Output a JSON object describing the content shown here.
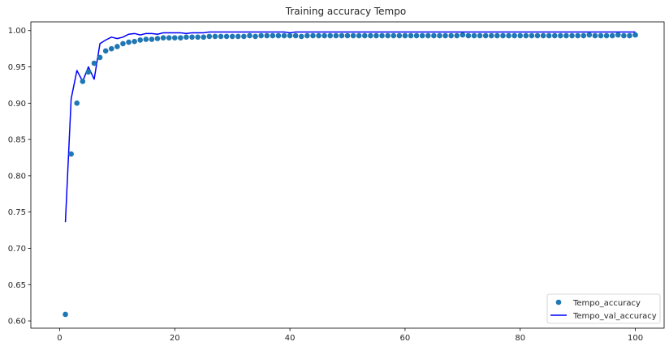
{
  "chart_data": {
    "type": "scatter",
    "title": "Training accuracy Tempo",
    "xlabel": "",
    "ylabel": "",
    "xlim": [
      -5,
      105
    ],
    "ylim": [
      0.59,
      1.012
    ],
    "xticks": [
      0,
      20,
      40,
      60,
      80,
      100
    ],
    "xtick_labels": [
      "0",
      "20",
      "40",
      "60",
      "80",
      "100"
    ],
    "yticks": [
      0.6,
      0.65,
      0.7,
      0.75,
      0.8,
      0.85,
      0.9,
      0.95,
      1.0
    ],
    "ytick_labels": [
      "0.60",
      "0.65",
      "0.70",
      "0.75",
      "0.80",
      "0.85",
      "0.90",
      "0.95",
      "1.00"
    ],
    "grid": false,
    "legend_position": "lower-right",
    "series": [
      {
        "name": "Tempo_accuracy",
        "kind": "scatter",
        "color": "#1f77b4",
        "x": [
          1,
          2,
          3,
          4,
          5,
          6,
          7,
          8,
          9,
          10,
          11,
          12,
          13,
          14,
          15,
          16,
          17,
          18,
          19,
          20,
          21,
          22,
          23,
          24,
          25,
          26,
          27,
          28,
          29,
          30,
          31,
          32,
          33,
          34,
          35,
          36,
          37,
          38,
          39,
          40,
          41,
          42,
          43,
          44,
          45,
          46,
          47,
          48,
          49,
          50,
          51,
          52,
          53,
          54,
          55,
          56,
          57,
          58,
          59,
          60,
          61,
          62,
          63,
          64,
          65,
          66,
          67,
          68,
          69,
          70,
          71,
          72,
          73,
          74,
          75,
          76,
          77,
          78,
          79,
          80,
          81,
          82,
          83,
          84,
          85,
          86,
          87,
          88,
          89,
          90,
          91,
          92,
          93,
          94,
          95,
          96,
          97,
          98,
          99,
          100
        ],
        "y": [
          0.609,
          0.83,
          0.9,
          0.93,
          0.943,
          0.955,
          0.963,
          0.972,
          0.975,
          0.978,
          0.982,
          0.984,
          0.985,
          0.987,
          0.988,
          0.988,
          0.989,
          0.99,
          0.99,
          0.99,
          0.99,
          0.991,
          0.991,
          0.991,
          0.991,
          0.992,
          0.992,
          0.992,
          0.992,
          0.992,
          0.992,
          0.992,
          0.993,
          0.992,
          0.993,
          0.993,
          0.993,
          0.993,
          0.993,
          0.993,
          0.993,
          0.992,
          0.993,
          0.993,
          0.993,
          0.993,
          0.993,
          0.993,
          0.993,
          0.993,
          0.993,
          0.993,
          0.993,
          0.993,
          0.993,
          0.993,
          0.993,
          0.993,
          0.993,
          0.993,
          0.993,
          0.993,
          0.993,
          0.993,
          0.993,
          0.993,
          0.993,
          0.993,
          0.993,
          0.994,
          0.993,
          0.993,
          0.993,
          0.993,
          0.993,
          0.993,
          0.993,
          0.993,
          0.993,
          0.993,
          0.993,
          0.993,
          0.993,
          0.993,
          0.993,
          0.993,
          0.993,
          0.993,
          0.993,
          0.993,
          0.993,
          0.994,
          0.993,
          0.993,
          0.993,
          0.993,
          0.994,
          0.993,
          0.993,
          0.994
        ]
      },
      {
        "name": "Tempo_val_accuracy",
        "kind": "line",
        "color": "#0000ff",
        "x": [
          1,
          2,
          3,
          4,
          5,
          6,
          7,
          8,
          9,
          10,
          11,
          12,
          13,
          14,
          15,
          16,
          17,
          18,
          19,
          20,
          21,
          22,
          23,
          24,
          25,
          26,
          27,
          28,
          29,
          30,
          31,
          32,
          33,
          34,
          35,
          36,
          37,
          38,
          39,
          40,
          41,
          42,
          43,
          44,
          45,
          46,
          47,
          48,
          49,
          50,
          51,
          52,
          53,
          54,
          55,
          56,
          57,
          58,
          59,
          60,
          61,
          62,
          63,
          64,
          65,
          66,
          67,
          68,
          69,
          70,
          71,
          72,
          73,
          74,
          75,
          76,
          77,
          78,
          79,
          80,
          81,
          82,
          83,
          84,
          85,
          86,
          87,
          88,
          89,
          90,
          91,
          92,
          93,
          94,
          95,
          96,
          97,
          98,
          99,
          100
        ],
        "y": [
          0.736,
          0.906,
          0.945,
          0.93,
          0.95,
          0.933,
          0.982,
          0.987,
          0.991,
          0.989,
          0.991,
          0.995,
          0.996,
          0.994,
          0.996,
          0.996,
          0.995,
          0.997,
          0.997,
          0.997,
          0.997,
          0.996,
          0.997,
          0.997,
          0.997,
          0.998,
          0.998,
          0.998,
          0.998,
          0.998,
          0.998,
          0.998,
          0.998,
          0.998,
          0.998,
          0.998,
          0.998,
          0.998,
          0.998,
          0.997,
          0.998,
          0.998,
          0.998,
          0.998,
          0.998,
          0.998,
          0.998,
          0.998,
          0.998,
          0.998,
          0.998,
          0.998,
          0.998,
          0.998,
          0.998,
          0.998,
          0.998,
          0.998,
          0.998,
          0.998,
          0.998,
          0.998,
          0.998,
          0.998,
          0.998,
          0.998,
          0.998,
          0.998,
          0.998,
          0.998,
          0.998,
          0.998,
          0.998,
          0.998,
          0.998,
          0.998,
          0.998,
          0.998,
          0.998,
          0.998,
          0.998,
          0.998,
          0.998,
          0.998,
          0.998,
          0.998,
          0.998,
          0.998,
          0.998,
          0.998,
          0.998,
          0.998,
          0.998,
          0.998,
          0.998,
          0.998,
          0.998,
          0.998,
          0.998,
          0.998
        ]
      }
    ]
  }
}
